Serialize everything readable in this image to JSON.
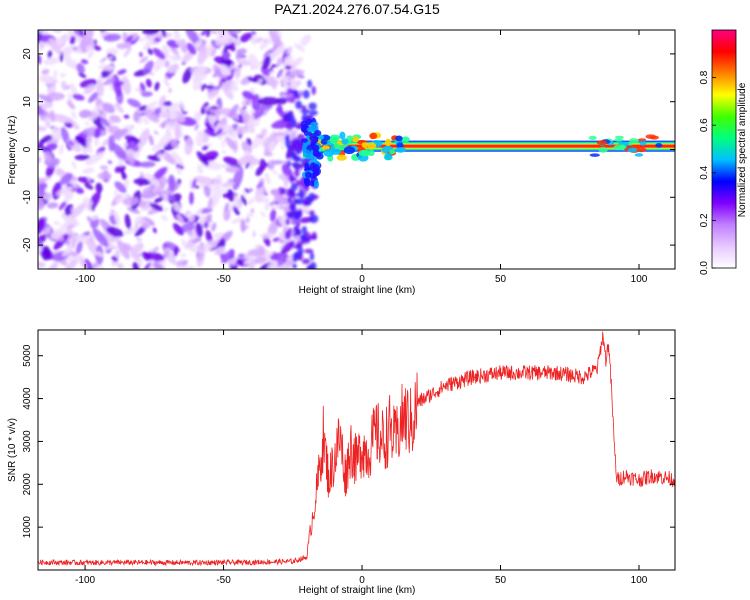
{
  "figure": {
    "title": "PAZ1.2024.276.07.54.G15"
  },
  "chart_data": [
    {
      "type": "heatmap",
      "xlabel": "Height of straight line (km)",
      "ylabel": "Frequency (Hz)",
      "xlim": [
        -117,
        113
      ],
      "ylim": [
        -25,
        25
      ],
      "x_ticks": [
        -100,
        -50,
        0,
        50,
        100
      ],
      "y_ticks": [
        -20,
        -10,
        0,
        10,
        20
      ],
      "colorbar": {
        "label": "Normalized spectral amplitude",
        "range": [
          0,
          1
        ],
        "ticks": [
          0.0,
          0.2,
          0.4,
          0.6,
          0.8
        ],
        "colormap": [
          "#ffffff",
          "#e8c8ff",
          "#c080ff",
          "#8000ff",
          "#0000ff",
          "#00c0ff",
          "#00ff80",
          "#40ff00",
          "#ffff00",
          "#ff8000",
          "#ff0000",
          "#ff0080"
        ]
      },
      "noise_region_x": [
        -117,
        -20
      ],
      "signal_region_x": [
        -20,
        113
      ],
      "signal_center_frequency_hz": 0.7,
      "signal_line_color": "#ff2020",
      "grid": false
    },
    {
      "type": "line",
      "xlabel": "Height of straight line (km)",
      "ylabel": "SNR (10 * v/v)",
      "xlim": [
        -117,
        113
      ],
      "ylim": [
        0,
        5600
      ],
      "x_ticks": [
        -100,
        -50,
        0,
        50,
        100
      ],
      "y_ticks": [
        1000,
        2000,
        3000,
        4000,
        5000
      ],
      "series": [
        {
          "color": "#ee2222",
          "x": [
            -117,
            -100,
            -80,
            -60,
            -40,
            -25,
            -20,
            -18,
            -16,
            -14,
            -12,
            -10,
            -8,
            -6,
            -4,
            -2,
            0,
            2,
            5,
            8,
            10,
            12,
            15,
            18,
            20,
            25,
            30,
            40,
            50,
            60,
            70,
            80,
            85,
            87,
            88,
            89,
            90,
            91,
            92,
            95,
            100,
            105,
            110,
            113
          ],
          "values": [
            180,
            170,
            175,
            170,
            180,
            200,
            300,
            1200,
            2000,
            3100,
            2100,
            2600,
            3100,
            2200,
            2900,
            2500,
            2900,
            2700,
            3200,
            3000,
            3300,
            3000,
            3600,
            3400,
            3900,
            4100,
            4300,
            4500,
            4600,
            4600,
            4600,
            4500,
            4700,
            5500,
            4900,
            5300,
            4300,
            3000,
            2100,
            2200,
            2100,
            2200,
            2150,
            2100
          ]
        }
      ],
      "grid": false
    }
  ]
}
